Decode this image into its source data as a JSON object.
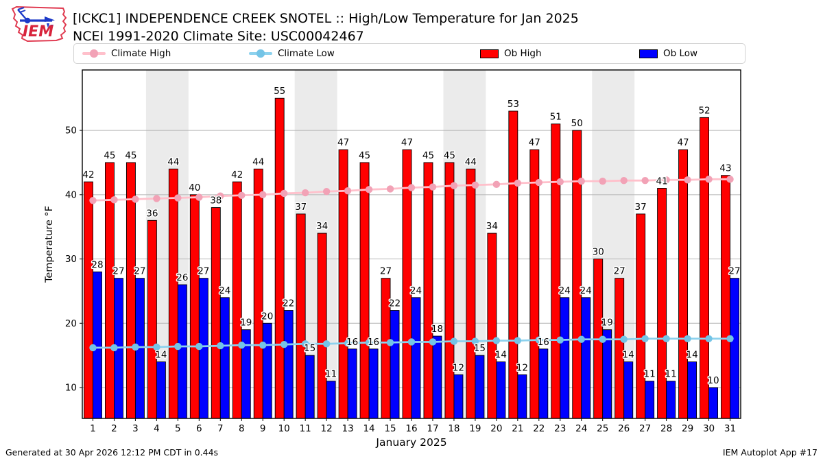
{
  "header": {
    "title_line1": "[ICKC1] INDEPENDENCE CREEK SNOTEL :: High/Low Temperature for Jan 2025",
    "title_line2": "NCEI 1991-2020 Climate Site: USC00042467",
    "logo_text": "IEM"
  },
  "legend": {
    "items": [
      {
        "label": "Climate High",
        "type": "line",
        "color": "#ffc0cb",
        "marker": "#f2a2b6"
      },
      {
        "label": "Climate Low",
        "type": "line",
        "color": "#8dd2ee",
        "marker": "#74c4e6"
      },
      {
        "label": "Ob High",
        "type": "patch",
        "color": "#ff0000"
      },
      {
        "label": "Ob Low",
        "type": "patch",
        "color": "#0000ff"
      }
    ]
  },
  "footer": {
    "left": "Generated at 30 Apr 2026 12:12 PM CDT in 0.44s",
    "right": "IEM Autoplot App #17"
  },
  "chart_data": {
    "type": "bar",
    "title": "[ICKC1] INDEPENDENCE CREEK SNOTEL :: High/Low Temperature for Jan 2025",
    "subtitle": "NCEI 1991-2020 Climate Site: USC00042467",
    "xlabel": "January 2025",
    "ylabel": "Temperature °F",
    "ylim": [
      5.2,
      59.4
    ],
    "yticks": [
      10,
      20,
      30,
      40,
      50
    ],
    "grid": true,
    "legend_position": "top",
    "band_color": "#ebebeb",
    "weekend_bands": [
      [
        3.5,
        5.5
      ],
      [
        10.5,
        12.5
      ],
      [
        17.5,
        19.5
      ],
      [
        24.5,
        26.5
      ]
    ],
    "days": [
      1,
      2,
      3,
      4,
      5,
      6,
      7,
      8,
      9,
      10,
      11,
      12,
      13,
      14,
      15,
      16,
      17,
      18,
      19,
      20,
      21,
      22,
      23,
      24,
      25,
      26,
      27,
      28,
      29,
      30,
      31
    ],
    "series": [
      {
        "name": "Ob High",
        "kind": "bar",
        "color": "#ff0000",
        "values": [
          42,
          45,
          45,
          36,
          44,
          40,
          38,
          42,
          44,
          55,
          37,
          34,
          47,
          45,
          27,
          47,
          45,
          45,
          44,
          34,
          53,
          47,
          51,
          50,
          30,
          27,
          37,
          41,
          47,
          52,
          43
        ]
      },
      {
        "name": "Ob Low",
        "kind": "bar",
        "color": "#0000ff",
        "values": [
          28,
          27,
          27,
          14,
          26,
          27,
          24,
          19,
          20,
          22,
          15,
          11,
          16,
          16,
          22,
          24,
          18,
          12,
          15,
          14,
          12,
          16,
          24,
          24,
          19,
          14,
          11,
          11,
          14,
          10,
          27
        ]
      },
      {
        "name": "Climate High",
        "kind": "line",
        "color": "#ffc0cb",
        "marker": "#f2a2b6",
        "values": [
          39.1,
          39.2,
          39.3,
          39.4,
          39.5,
          39.6,
          39.8,
          39.9,
          40.0,
          40.2,
          40.3,
          40.5,
          40.6,
          40.8,
          40.9,
          41.1,
          41.2,
          41.4,
          41.5,
          41.6,
          41.8,
          41.9,
          42.0,
          42.1,
          42.1,
          42.2,
          42.2,
          42.3,
          42.3,
          42.4,
          42.4
        ]
      },
      {
        "name": "Climate Low",
        "kind": "line",
        "color": "#8dd2ee",
        "marker": "#74c4e6",
        "values": [
          16.2,
          16.2,
          16.3,
          16.3,
          16.4,
          16.4,
          16.5,
          16.6,
          16.6,
          16.7,
          16.8,
          16.8,
          16.9,
          17.0,
          17.0,
          17.1,
          17.1,
          17.2,
          17.2,
          17.3,
          17.3,
          17.4,
          17.4,
          17.5,
          17.5,
          17.5,
          17.6,
          17.6,
          17.6,
          17.6,
          17.6
        ]
      }
    ]
  }
}
